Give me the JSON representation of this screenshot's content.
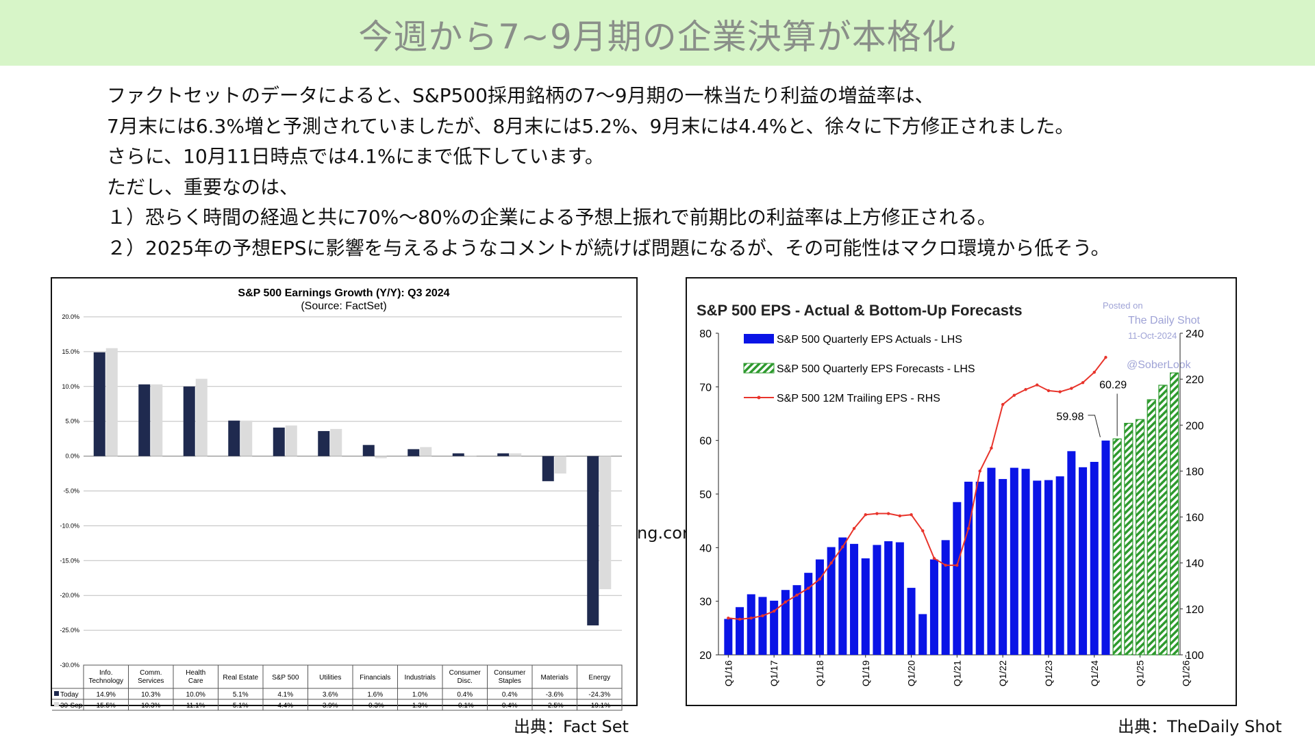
{
  "banner": {
    "title": "今週から7~9月期の企業決算が本格化"
  },
  "body_lines": [
    "ファクトセットのデータによると、S&P500採用銘柄の7〜9月期の一株当たり利益の増益率は、",
    "7月末には6.3%増と予測されていましたが、8月末には5.2%、9月末には4.4%と、徐々に下方修正されました。",
    "さらに、10月11日時点では4.1%にまで低下しています。",
    "ただし、重要なのは、",
    "１）恐らく時間の経過と共に70%〜80%の企業による予想上振れで前期比の利益率は上方修正される。",
    "２）2025年の予想EPSに影響を与えるようなコメントが続けば問題になるが、その可能性はマクロ環境から低そう。"
  ],
  "stray_text": "ng.com",
  "source_left": "出典：Fact Set",
  "source_right": "出典：TheDaily Shot",
  "chart_data": [
    {
      "type": "bar",
      "title": "S&P 500 Earnings Growth (Y/Y): Q3 2024",
      "subtitle": "(Source: FactSet)",
      "categories": [
        [
          "Info.",
          "Technology"
        ],
        [
          "Comm.",
          "Services"
        ],
        [
          "Health",
          "Care"
        ],
        [
          "Real Estate"
        ],
        [
          "S&P 500"
        ],
        [
          "Utilities"
        ],
        [
          "Financials"
        ],
        [
          "Industrials"
        ],
        [
          "Consumer",
          "Disc."
        ],
        [
          "Consumer",
          "Staples"
        ],
        [
          "Materials"
        ],
        [
          "Energy"
        ]
      ],
      "series": [
        {
          "name": "Today",
          "color": "#1f2a4f",
          "values": [
            14.9,
            10.3,
            10.0,
            5.1,
            4.1,
            3.6,
            1.6,
            1.0,
            0.4,
            0.4,
            -3.6,
            -24.3
          ],
          "labels": [
            "14.9%",
            "10.3%",
            "10.0%",
            "5.1%",
            "4.1%",
            "3.6%",
            "1.6%",
            "1.0%",
            "0.4%",
            "0.4%",
            "-3.6%",
            "-24.3%"
          ]
        },
        {
          "name": "30-Sep",
          "color": "#dcdcdc",
          "values": [
            15.5,
            10.3,
            11.1,
            5.1,
            4.4,
            3.9,
            -0.3,
            1.3,
            -0.1,
            0.4,
            -2.5,
            -19.1
          ],
          "labels": [
            "15.5%",
            "10.3%",
            "11.1%",
            "5.1%",
            "4.4%",
            "3.9%",
            "-0.3%",
            "1.3%",
            "-0.1%",
            "0.4%",
            "-2.5%",
            "-19.1%"
          ]
        }
      ],
      "ylim": [
        -30,
        20
      ],
      "yticks": [
        "20.0%",
        "15.0%",
        "10.0%",
        "5.0%",
        "0.0%",
        "-5.0%",
        "-10.0%",
        "-15.0%",
        "-20.0%",
        "-25.0%",
        "-30.0%"
      ],
      "ytick_values": [
        20,
        15,
        10,
        5,
        0,
        -5,
        -10,
        -15,
        -20,
        -25,
        -30
      ],
      "grid": true
    },
    {
      "type": "bar",
      "title": "S&P 500 EPS - Actual & Bottom-Up Forecasts",
      "watermark": [
        "Posted on",
        "The Daily Shot",
        "11-Oct-2024",
        "@SoberLook"
      ],
      "xtick_labels": [
        "Q1/16",
        "Q1/17",
        "Q1/18",
        "Q1/19",
        "Q1/20",
        "Q1/21",
        "Q1/22",
        "Q1/23",
        "Q1/24",
        "Q1/25",
        "Q1/26"
      ],
      "lhs_ylim": [
        20,
        80
      ],
      "lhs_yticks": [
        "80",
        "70",
        "60",
        "50",
        "40",
        "30",
        "20"
      ],
      "rhs_ylim": [
        100,
        240
      ],
      "rhs_yticks": [
        "240",
        "220",
        "200",
        "180",
        "160",
        "140",
        "120",
        "100"
      ],
      "legend": [
        {
          "name": "S&P 500 Quarterly EPS Actuals - LHS",
          "color": "#0a14e6"
        },
        {
          "name": "S&P 500 Quarterly EPS Forecasts - LHS",
          "color": "#2e9a2e"
        },
        {
          "name": "S&P 500 12M Trailing EPS - RHS",
          "color": "#e8342b"
        }
      ],
      "actuals": [
        26.7,
        28.9,
        31.3,
        30.8,
        30.1,
        32.1,
        33.0,
        35.3,
        37.8,
        40.1,
        41.9,
        40.7,
        38.0,
        40.5,
        41.2,
        41.0,
        32.5,
        27.6,
        37.8,
        41.4,
        48.5,
        52.3,
        52.3,
        54.9,
        52.8,
        54.9,
        54.7,
        52.5,
        52.6,
        53.3,
        58.0,
        55.0,
        56.0,
        59.98
      ],
      "actual_label": "59.98",
      "forecasts": [
        60.29,
        63.2,
        63.9,
        67.6,
        70.3,
        72.6
      ],
      "forecast_label": "60.29",
      "trailing": [
        116,
        115.5,
        116,
        117,
        119,
        123,
        126,
        129,
        133,
        140,
        147,
        155,
        161,
        161.5,
        161.5,
        160.5,
        161,
        154,
        142,
        139,
        139,
        155,
        180,
        190,
        209,
        213,
        215.5,
        217.5,
        215,
        214.5,
        216,
        218.5,
        223,
        229.5
      ]
    }
  ]
}
